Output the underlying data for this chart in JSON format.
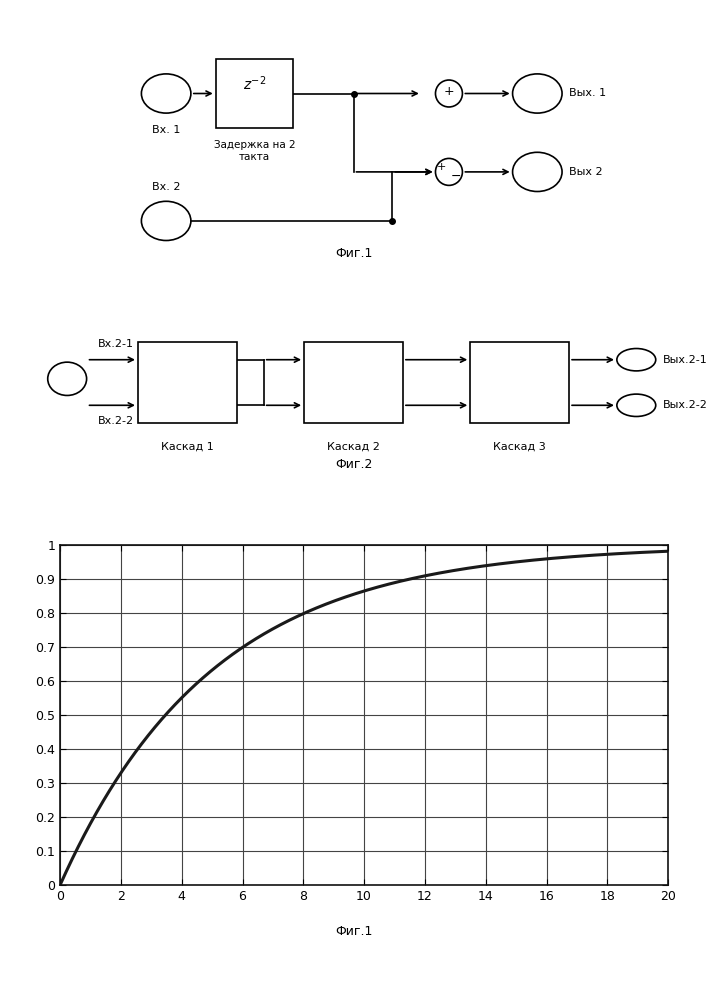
{
  "background_color": "#ffffff",
  "line_color": "#1a1a1a",
  "line_width": 2.2,
  "grid_color": "#444444",
  "curve_decay": 0.18,
  "curve_power": 0.75,
  "curve_xlim": [
    0,
    20
  ],
  "curve_ylim": [
    0,
    1
  ],
  "curve_xticks": [
    0,
    2,
    4,
    6,
    8,
    10,
    12,
    14,
    16,
    18,
    20
  ],
  "curve_yticks": [
    0,
    0.1,
    0.2,
    0.3,
    0.4,
    0.5,
    0.6,
    0.7,
    0.8,
    0.9,
    1
  ],
  "font_size_tick": 9,
  "fig1_label": "Фиг.1",
  "fig2_label": "Фиг.2",
  "fig3_label": "Фиг.1"
}
